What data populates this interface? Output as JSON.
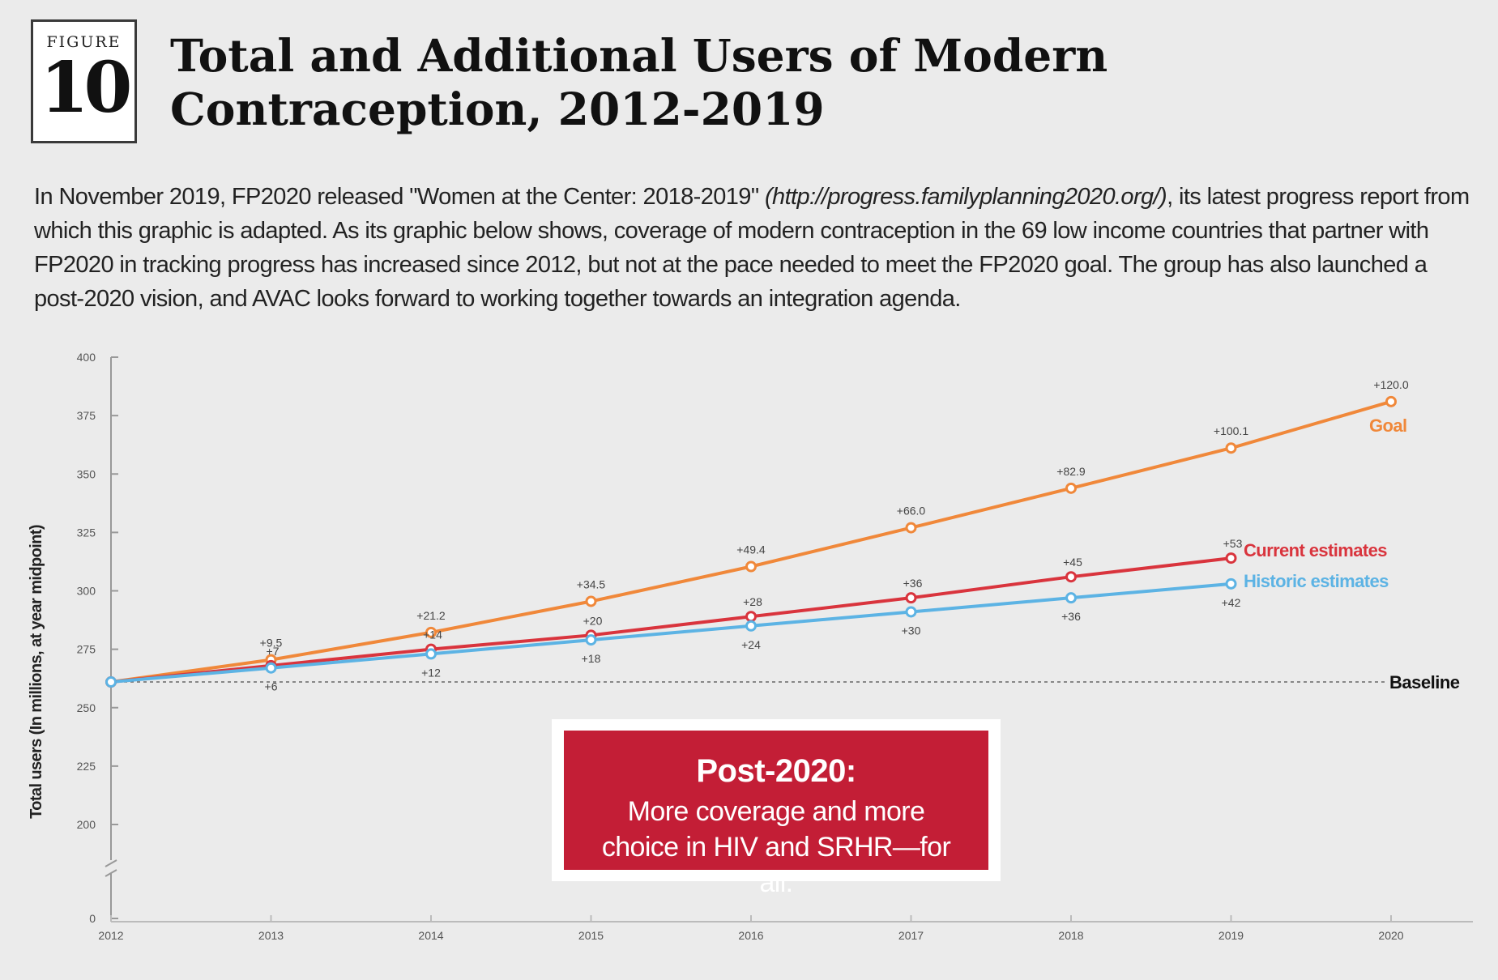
{
  "figure": {
    "label": "FIGURE",
    "number": "10",
    "title": "Total and Additional Users of Modern Contraception, 2012-2019"
  },
  "intro": {
    "text_before": "In November 2019, FP2020 released \"Women at the Center: 2018-2019\" ",
    "link_text": "(http://progress.familyplanning2020.org/)",
    "text_after": ", its latest progress report from which this graphic is adapted. As its graphic below shows, coverage of modern contraception in the 69 low income countries that partner with FP2020 in tracking progress has increased since 2012, but not at the pace needed to meet the FP2020 goal. The group has also launched a post-2020 vision, and AVAC looks forward to working together towards an integration agenda."
  },
  "callout": {
    "heading": "Post-2020:",
    "body": "More coverage and more choice in HIV and SRHR—for all."
  },
  "chart_data": {
    "type": "line",
    "ylabel": "Total users (In millions, at year midpoint)",
    "xlabel": "",
    "x": [
      2012,
      2013,
      2014,
      2015,
      2016,
      2017,
      2018,
      2019,
      2020
    ],
    "x_ticks": [
      "2012",
      "2013",
      "2014",
      "2015",
      "2016",
      "2017",
      "2018",
      "2019",
      "2020"
    ],
    "y_ticks": [
      0,
      200,
      225,
      250,
      275,
      300,
      325,
      350,
      375,
      400
    ],
    "ylim": [
      200,
      400
    ],
    "axis_break": "between 0 and 200",
    "grid": false,
    "baseline": {
      "label": "Baseline",
      "value": 261,
      "color": "#666666"
    },
    "series": [
      {
        "name": "Goal",
        "color": "#f0883a",
        "x": [
          2012,
          2013,
          2014,
          2015,
          2016,
          2017,
          2018,
          2019,
          2020
        ],
        "values": [
          261,
          270.5,
          282.2,
          295.5,
          310.4,
          327,
          343.9,
          361.1,
          381
        ],
        "labels": [
          "",
          "+9.5",
          "+21.2",
          "+34.5",
          "+49.4",
          "+66.0",
          "+82.9",
          "+100.1",
          "+120.0"
        ]
      },
      {
        "name": "Current estimates",
        "color": "#d9343d",
        "x": [
          2012,
          2013,
          2014,
          2015,
          2016,
          2017,
          2018,
          2019
        ],
        "values": [
          261,
          268,
          275,
          281,
          289,
          297,
          306,
          314
        ],
        "labels": [
          "",
          "+7",
          "+14",
          "+20",
          "+28",
          "+36",
          "+45",
          "+53"
        ]
      },
      {
        "name": "Historic estimates",
        "color": "#5cb3e4",
        "x": [
          2012,
          2013,
          2014,
          2015,
          2016,
          2017,
          2018,
          2019
        ],
        "values": [
          261,
          267,
          273,
          279,
          285,
          291,
          297,
          303
        ],
        "labels": [
          "",
          "+6",
          "+12",
          "+18",
          "+24",
          "+30",
          "+36",
          "+42"
        ]
      }
    ]
  }
}
